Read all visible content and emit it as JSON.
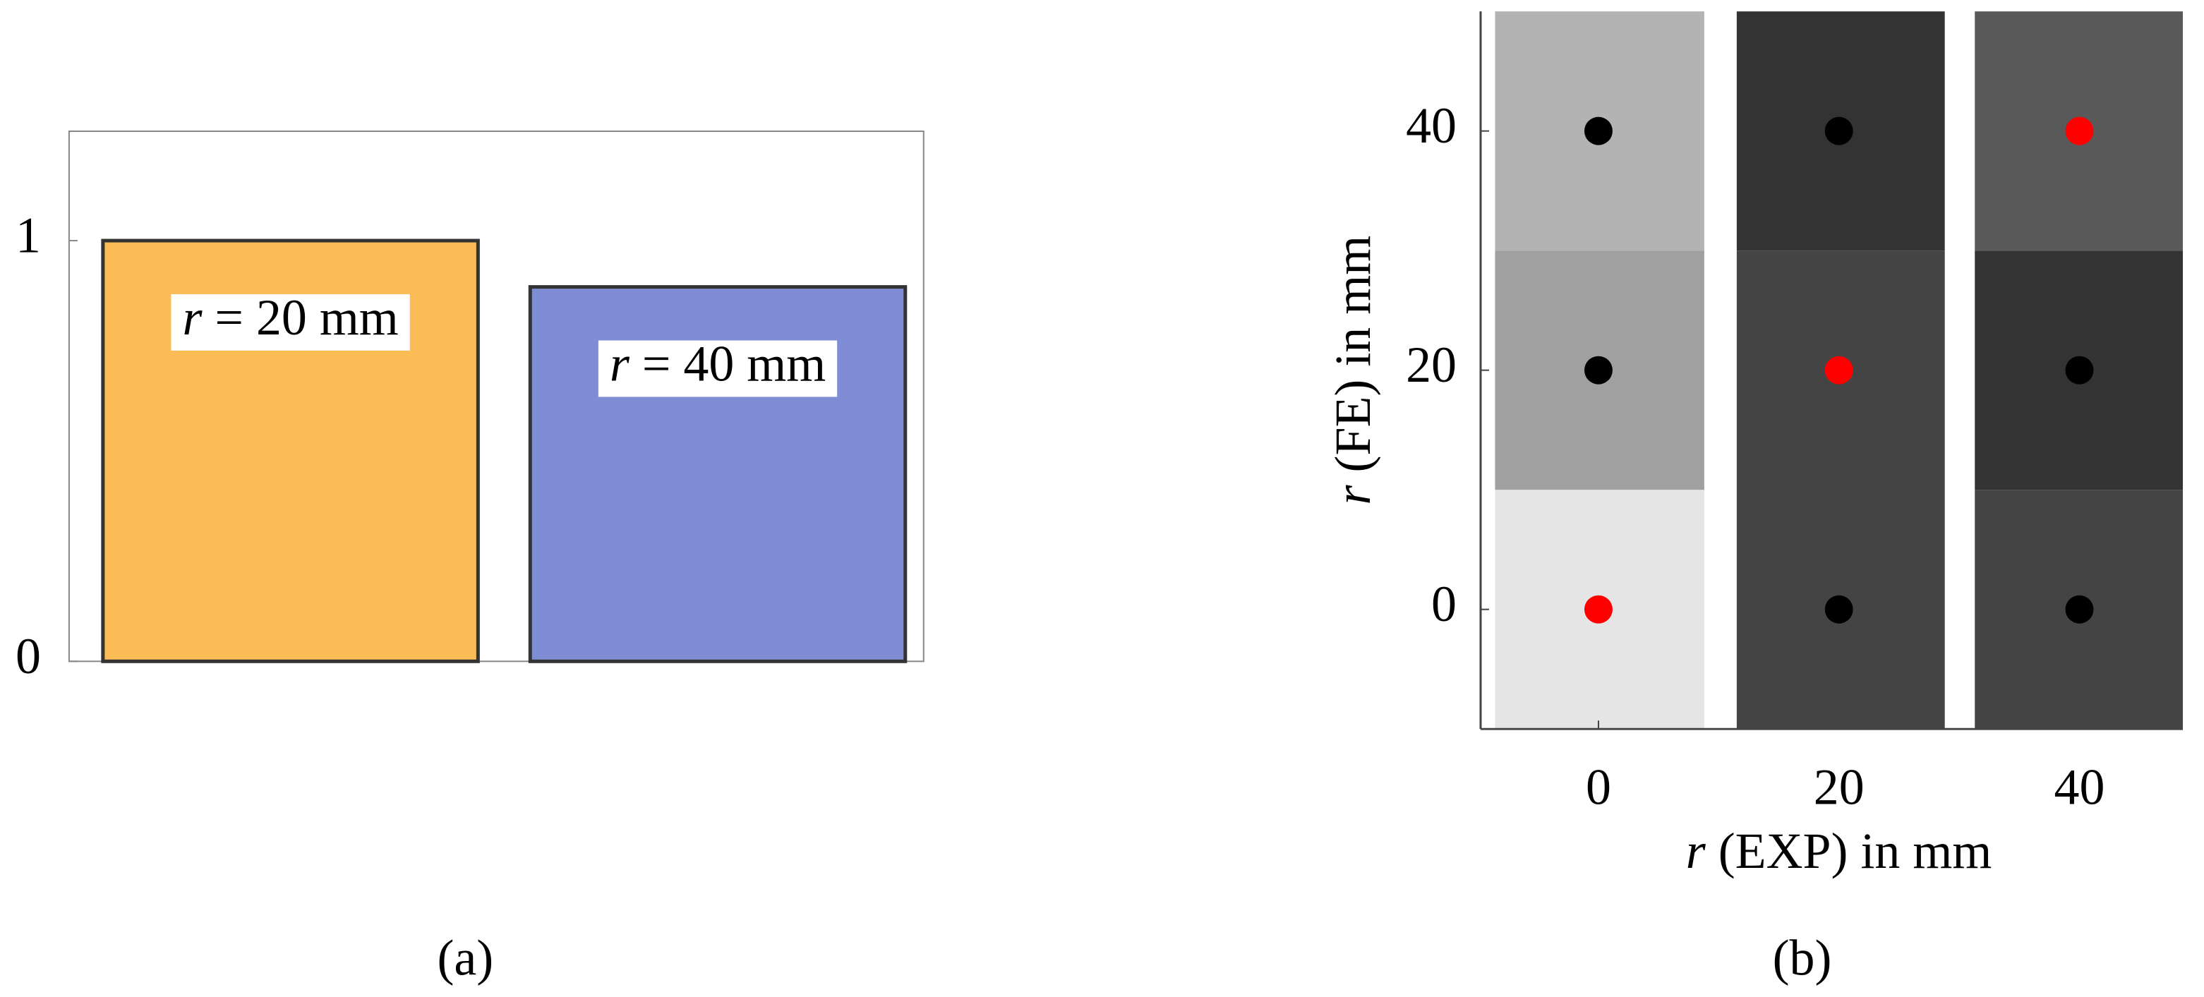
{
  "chart_data": [
    {
      "type": "bar",
      "caption": "(a)",
      "categories": [
        "r = 20 mm",
        "r = 40 mm"
      ],
      "values": [
        1,
        0.89
      ],
      "colors": [
        "#fbbb55",
        "#7f8ed4"
      ],
      "ylim": [
        0,
        1.26
      ],
      "yticks": [
        0,
        1
      ]
    },
    {
      "type": "heatmap",
      "caption": "(b)",
      "xlabel": "r (EXP) in mm",
      "ylabel": "r (FE) in mm",
      "xlim": [
        -9.8,
        48.6
      ],
      "ylim": [
        -10,
        50
      ],
      "xticks": [
        0,
        20,
        40
      ],
      "yticks": [
        0,
        20,
        40
      ],
      "columns": [
        {
          "x0": -8.6,
          "x1": 8.8,
          "cells": [
            {
              "y0": -10,
              "y1": 10,
              "color": "#e5e5e5"
            },
            {
              "y0": 10,
              "y1": 30,
              "color": "#a0a0a0"
            },
            {
              "y0": 30,
              "y1": 50,
              "color": "#b3b3b3"
            }
          ]
        },
        {
          "x0": 11.5,
          "x1": 28.8,
          "cells": [
            {
              "y0": -10,
              "y1": 30,
              "color": "#444444"
            },
            {
              "y0": 30,
              "y1": 50,
              "color": "#333333"
            }
          ]
        },
        {
          "x0": 31.3,
          "x1": 48.6,
          "cells": [
            {
              "y0": -10,
              "y1": 10,
              "color": "#444444"
            },
            {
              "y0": 10,
              "y1": 30,
              "color": "#333333"
            },
            {
              "y0": 30,
              "y1": 50,
              "color": "#595959"
            }
          ]
        }
      ],
      "points": [
        {
          "x": 0,
          "y": 0,
          "color": "#ff0000"
        },
        {
          "x": 0,
          "y": 20,
          "color": "#000000"
        },
        {
          "x": 0,
          "y": 40,
          "color": "#000000"
        },
        {
          "x": 20,
          "y": 0,
          "color": "#000000"
        },
        {
          "x": 20,
          "y": 20,
          "color": "#ff0000"
        },
        {
          "x": 20,
          "y": 40,
          "color": "#000000"
        },
        {
          "x": 40,
          "y": 0,
          "color": "#000000"
        },
        {
          "x": 40,
          "y": 20,
          "color": "#000000"
        },
        {
          "x": 40,
          "y": 40,
          "color": "#ff0000"
        }
      ]
    }
  ]
}
